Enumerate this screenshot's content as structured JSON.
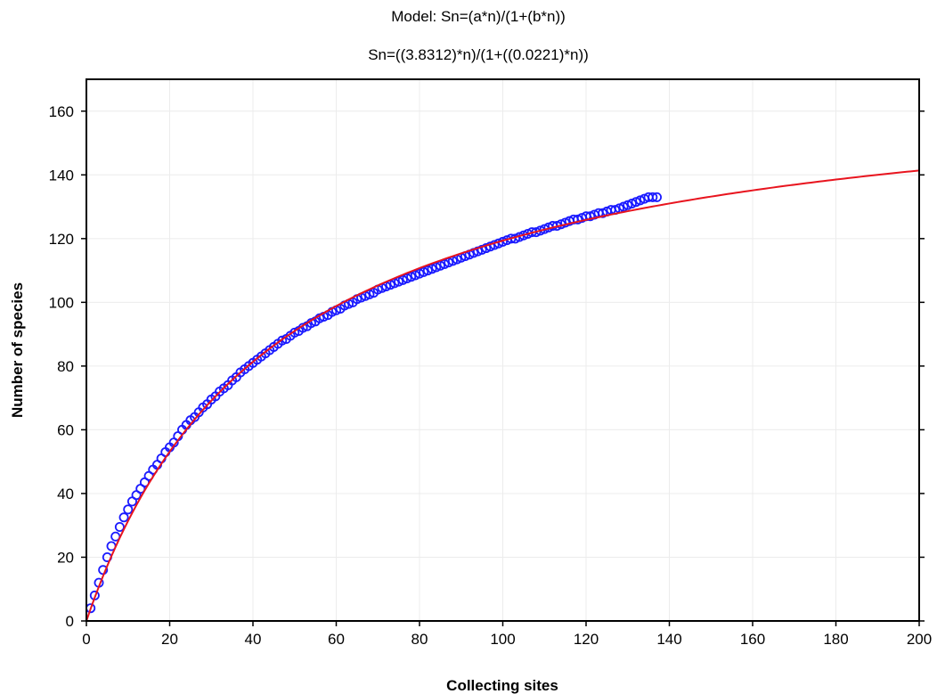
{
  "chart_data": {
    "type": "scatter",
    "title": "Model: Sn=(a*n)/(1+(b*n))",
    "subtitle": "Sn=((3.8312)*n)/(1+((0.0221)*n))",
    "xlabel": "Collecting sites",
    "ylabel": "Number of species",
    "xlim": [
      0,
      200
    ],
    "ylim": [
      0,
      170
    ],
    "x_ticks": [
      "0",
      "20",
      "40",
      "60",
      "80",
      "100",
      "120",
      "140",
      "160",
      "180",
      "200"
    ],
    "y_ticks": [
      "0",
      "20",
      "40",
      "60",
      "80",
      "100",
      "120",
      "140",
      "160"
    ],
    "grid": true,
    "legend": "none",
    "series": [
      {
        "style": "points",
        "color": "#1a1aff",
        "x": [
          1,
          2,
          3,
          4,
          5,
          6,
          7,
          8,
          9,
          10,
          11,
          12,
          13,
          14,
          15,
          16,
          17,
          18,
          19,
          20,
          21,
          22,
          23,
          24,
          25,
          26,
          27,
          28,
          29,
          30,
          31,
          32,
          33,
          34,
          35,
          36,
          37,
          38,
          39,
          40,
          41,
          42,
          43,
          44,
          45,
          46,
          47,
          48,
          49,
          50,
          51,
          52,
          53,
          54,
          55,
          56,
          57,
          58,
          59,
          60,
          61,
          62,
          63,
          64,
          65,
          66,
          67,
          68,
          69,
          70,
          71,
          72,
          73,
          74,
          75,
          76,
          77,
          78,
          79,
          80,
          81,
          82,
          83,
          84,
          85,
          86,
          87,
          88,
          89,
          90,
          91,
          92,
          93,
          94,
          95,
          96,
          97,
          98,
          99,
          100,
          101,
          102,
          103,
          104,
          105,
          106,
          107,
          108,
          109,
          110,
          111,
          112,
          113,
          114,
          115,
          116,
          117,
          118,
          119,
          120,
          121,
          122,
          123,
          124,
          125,
          126,
          127,
          128,
          129,
          130,
          131,
          132,
          133,
          134,
          135,
          136,
          137
        ],
        "y": [
          4,
          8,
          12,
          16,
          20,
          23.5,
          26.5,
          29.5,
          32.5,
          35,
          37.5,
          39.5,
          41.5,
          43.5,
          45.5,
          47.5,
          49,
          51,
          53,
          54.5,
          56,
          58,
          60,
          61.5,
          63,
          64,
          65.5,
          67,
          68,
          69.5,
          70.5,
          72,
          73,
          74,
          75.5,
          76.5,
          78,
          79,
          80,
          81,
          82,
          83,
          84,
          85,
          86,
          87,
          88,
          88.5,
          89.5,
          90.5,
          91,
          92,
          92.5,
          93.5,
          94,
          95,
          95.5,
          96,
          97,
          97.5,
          98,
          99,
          99.5,
          100,
          101,
          101.5,
          102,
          102.5,
          103,
          104,
          104.5,
          105,
          105.5,
          106,
          106.5,
          107,
          107.5,
          108,
          108.5,
          109,
          109.5,
          110,
          110.5,
          111,
          111.5,
          112,
          112.5,
          113,
          113.5,
          114,
          114.5,
          115,
          115.5,
          116,
          116.5,
          117,
          117.5,
          118,
          118.5,
          119,
          119.5,
          120,
          120,
          120.5,
          121,
          121.5,
          122,
          122,
          122.5,
          123,
          123.5,
          124,
          124,
          124.5,
          125,
          125.5,
          126,
          126,
          126.5,
          127,
          127,
          127.5,
          128,
          128,
          128.5,
          129,
          129,
          129.5,
          130,
          130.5,
          131,
          131.5,
          132,
          132.5,
          133,
          133,
          133
        ]
      },
      {
        "style": "line",
        "color": "#e8141e",
        "model": "Sn=(a*n)/(1+(b*n))",
        "a": 3.8312,
        "b": 0.0221
      }
    ]
  }
}
